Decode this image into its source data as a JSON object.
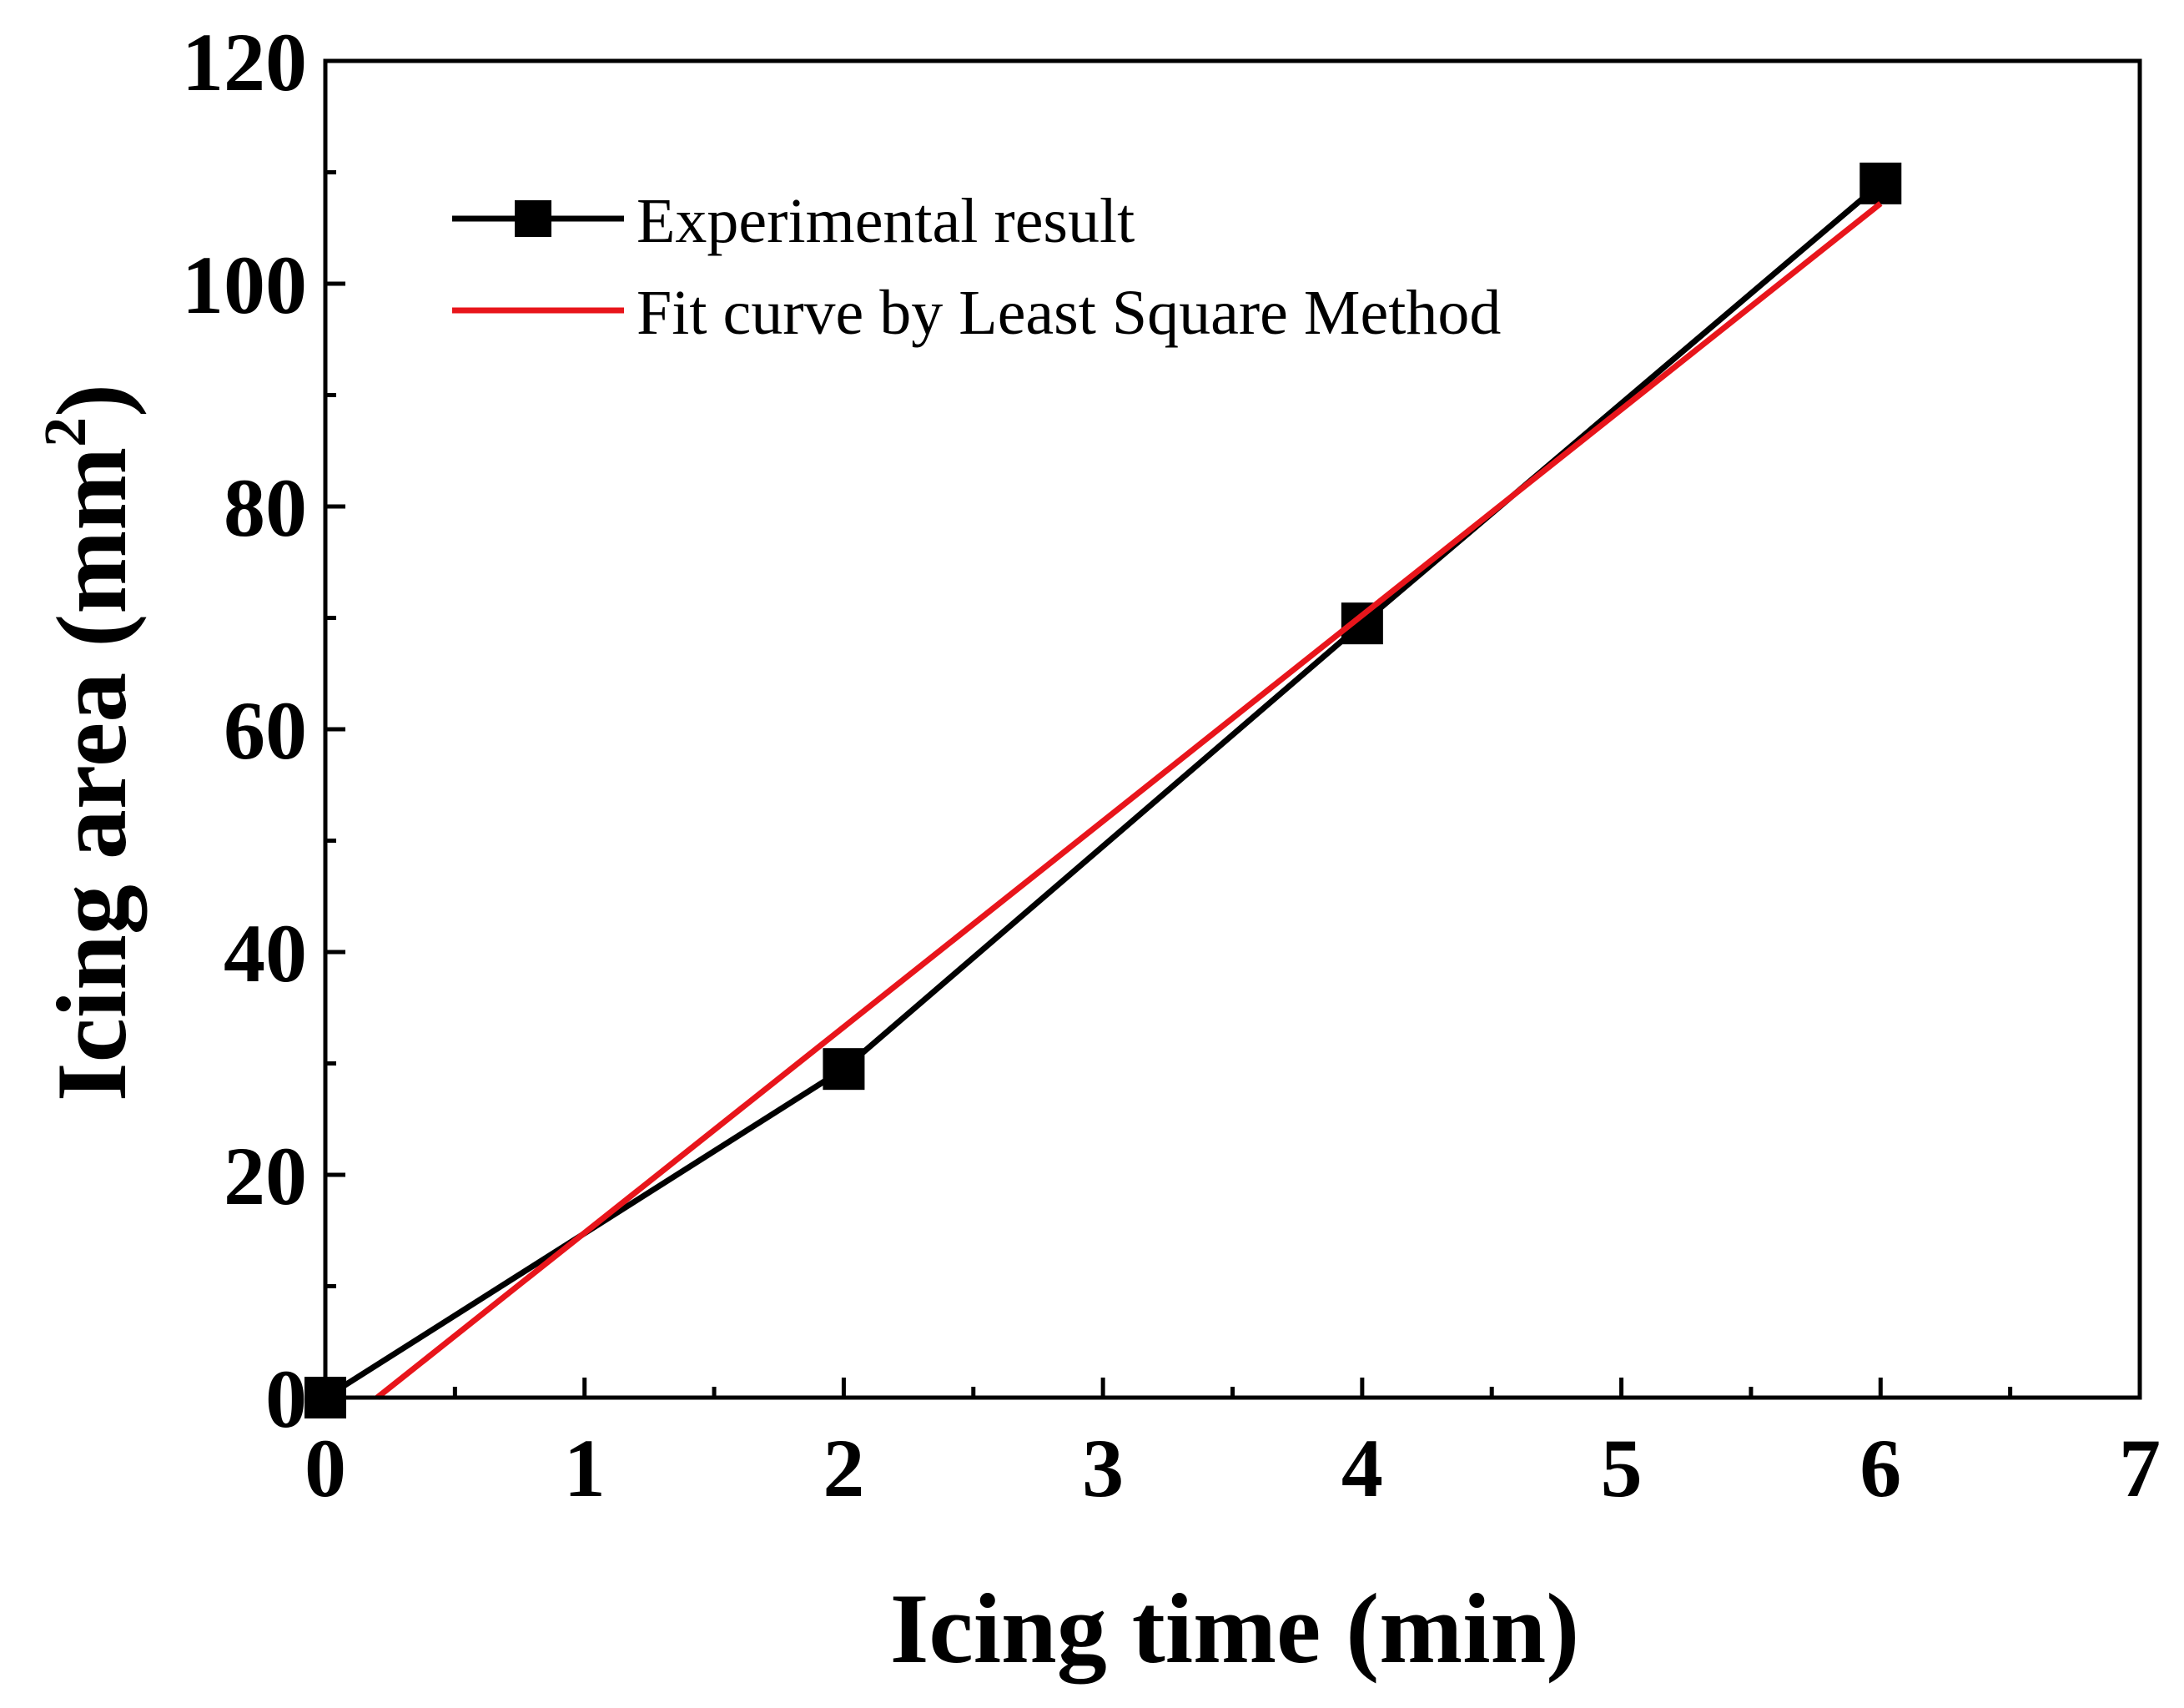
{
  "chart_data": {
    "type": "line",
    "title": "",
    "xlabel": "Icing time (min)",
    "ylabel_main": "Icing area (mm",
    "ylabel_sup": "2",
    "ylabel_close": ")",
    "xlim": [
      0,
      7
    ],
    "ylim": [
      0,
      120
    ],
    "x_ticks": [
      0,
      1,
      2,
      3,
      4,
      5,
      6,
      7
    ],
    "x_tick_labels": [
      "0",
      "1",
      "2",
      "3",
      "4",
      "5",
      "6",
      "7"
    ],
    "y_ticks": [
      0,
      20,
      40,
      60,
      80,
      100,
      120
    ],
    "y_tick_labels": [
      "0",
      "20",
      "40",
      "60",
      "80",
      "100",
      "120"
    ],
    "grid": false,
    "legend_position": "top-left",
    "series": [
      {
        "name": "Experimental result",
        "style": "line-with-square-markers",
        "color": "#000000",
        "x": [
          0,
          2,
          4,
          6
        ],
        "y": [
          0,
          29.5,
          69.5,
          109
        ]
      },
      {
        "name": "Fit curve by Least Square Method",
        "style": "line",
        "color": "#e8151b",
        "x": [
          0.2,
          6
        ],
        "y": [
          0,
          107.2
        ]
      }
    ]
  }
}
